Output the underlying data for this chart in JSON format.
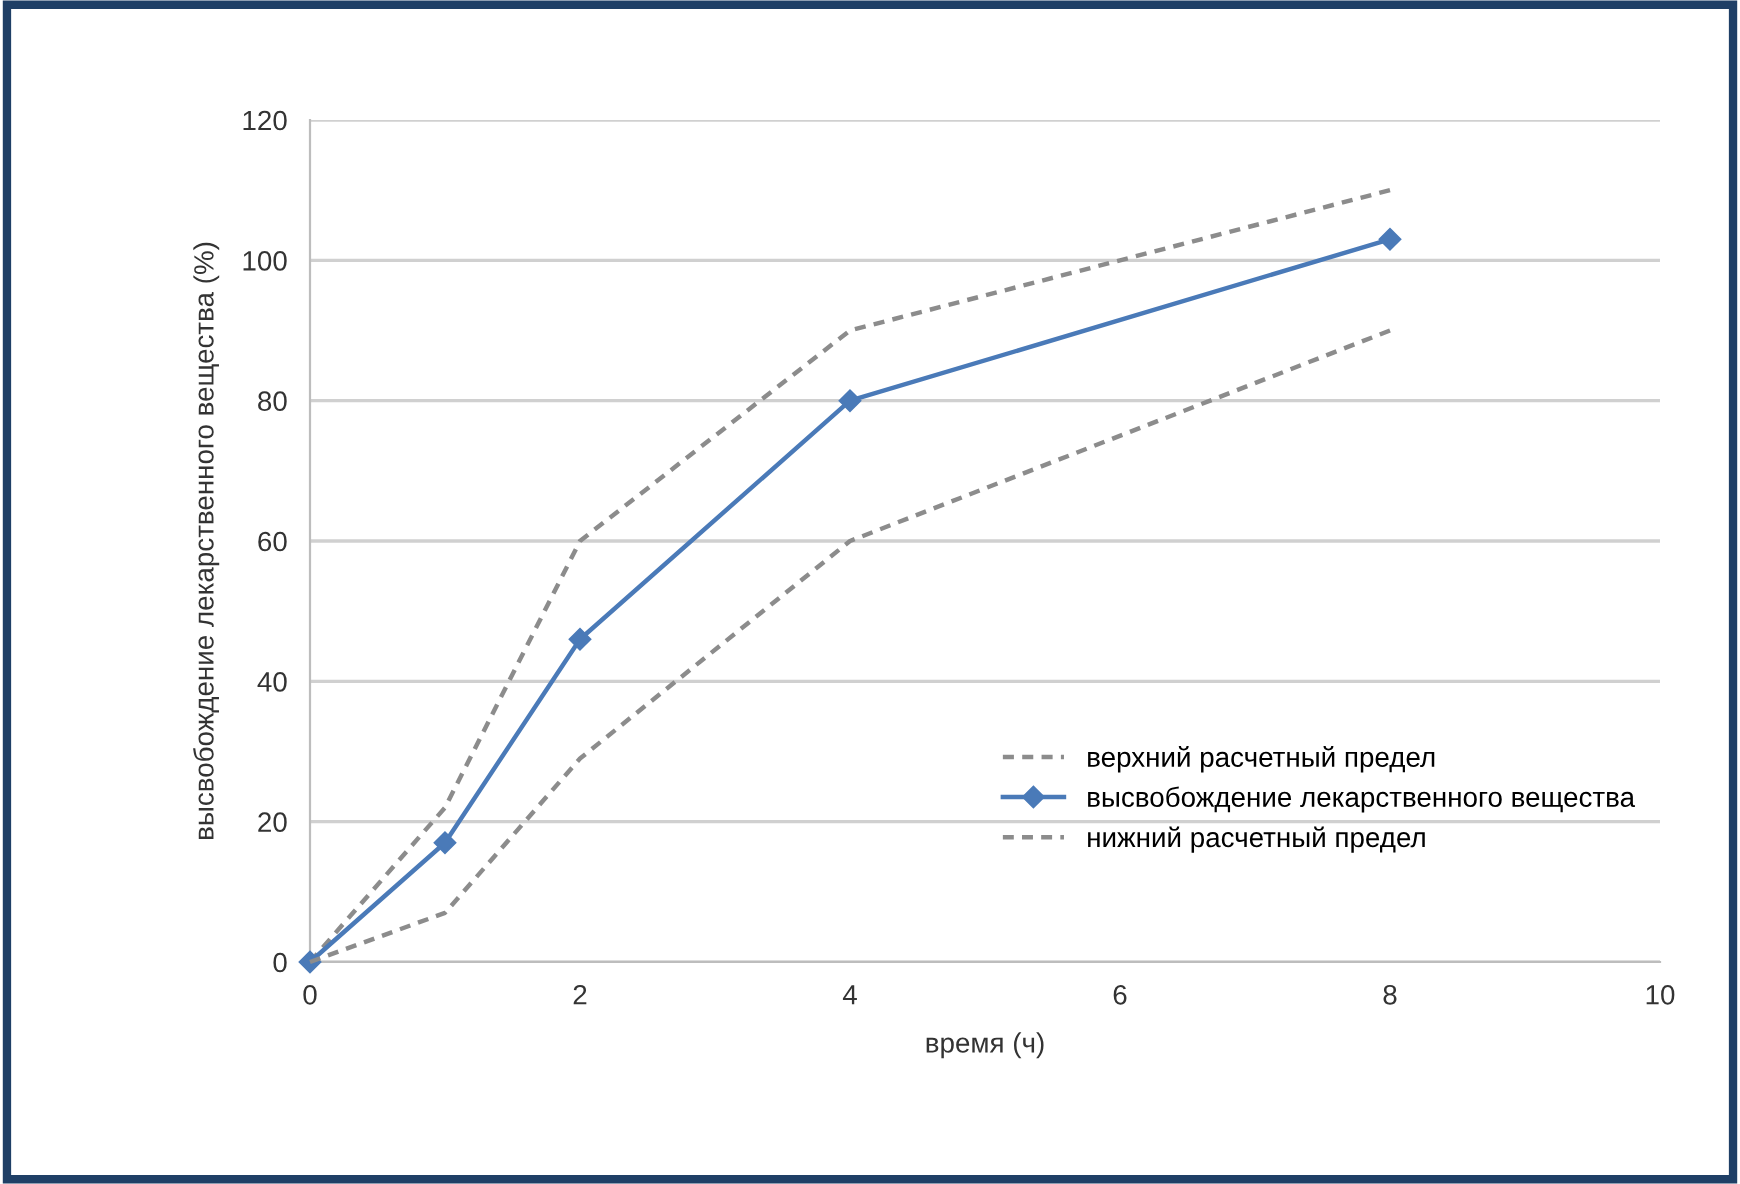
{
  "chart_data": {
    "type": "line",
    "xlabel": "время (ч)",
    "ylabel": "высвобождение лекарственного вещества (%)",
    "xlim": [
      0,
      10
    ],
    "xticks": [
      0,
      2,
      4,
      6,
      8,
      10
    ],
    "ylim": [
      0,
      120
    ],
    "yticks": [
      0,
      20,
      40,
      60,
      80,
      100,
      120
    ],
    "grid": "y",
    "legend": "lower right",
    "x": [
      0,
      1,
      2,
      4,
      8
    ],
    "series": [
      {
        "name": "верхний расчетный предел",
        "color": "#8c8c8c",
        "line_style": "dashed",
        "marker": "none",
        "values": [
          0,
          22,
          60,
          90,
          110
        ]
      },
      {
        "name": "высвобождение лекарственного вещества",
        "color": "#4a7ab8",
        "line_style": "solid",
        "marker": "diamond",
        "values": [
          0,
          17,
          46,
          80,
          103
        ]
      },
      {
        "name": "нижний расчетный предел",
        "color": "#8c8c8c",
        "line_style": "dashed",
        "marker": "none",
        "values": [
          0,
          7,
          29,
          60,
          90
        ]
      }
    ]
  }
}
